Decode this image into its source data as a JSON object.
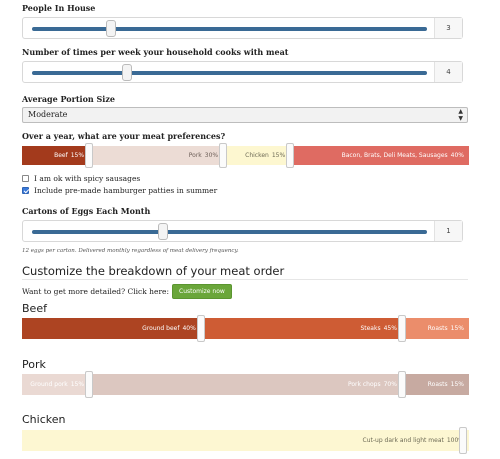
{
  "people": {
    "label": "People In House",
    "value": "3",
    "level": 0.2
  },
  "cooks": {
    "label": "Number of times per week your household cooks with meat",
    "value": "4",
    "level": 0.24
  },
  "portion": {
    "label": "Average Portion Size",
    "selected": "Moderate"
  },
  "prefs": {
    "label": "Over a year, what are your meat preferences?",
    "segments": [
      {
        "name": "Beef",
        "pct": "15%",
        "fraction": 0.15,
        "bg": "#a33a1c",
        "fg": "#ffffff"
      },
      {
        "name": "Pork",
        "pct": "30%",
        "fraction": 0.3,
        "bg": "#ecdcd5",
        "fg": "#6d5f58"
      },
      {
        "name": "Chicken",
        "pct": "15%",
        "fraction": 0.15,
        "bg": "#fdf7d0",
        "fg": "#6d6a55"
      },
      {
        "name": "Bacon, Brats, Deli Meats, Sausages",
        "pct": "40%",
        "fraction": 0.4,
        "bg": "#df6b62",
        "fg": "#ffffff"
      }
    ]
  },
  "options": [
    {
      "label": "I am ok with spicy sausages",
      "checked": false
    },
    {
      "label": "Include pre-made hamburger patties in summer",
      "checked": true
    }
  ],
  "eggs": {
    "label": "Cartons of Eggs Each Month",
    "value": "1",
    "level": 0.33,
    "note": "12 eggs per carton. Delivered monthly regardless of meat delivery frequency."
  },
  "customize": {
    "heading": "Customize the breakdown of your meat order",
    "prompt": "Want to get more detailed? Click here:",
    "button": "Customize now"
  },
  "beef": {
    "heading": "Beef",
    "segments": [
      {
        "name": "Ground beef",
        "pct": "40%",
        "fraction": 0.4,
        "bg": "#ad4422",
        "fg": "#ffffff"
      },
      {
        "name": "Steaks",
        "pct": "45%",
        "fraction": 0.45,
        "bg": "#ce5c34",
        "fg": "#ffffff"
      },
      {
        "name": "Roasts",
        "pct": "15%",
        "fraction": 0.15,
        "bg": "#eb8d6b",
        "fg": "#ffffff"
      }
    ]
  },
  "pork": {
    "heading": "Pork",
    "segments": [
      {
        "name": "Ground pork",
        "pct": "15%",
        "fraction": 0.15,
        "bg": "#ead9d3",
        "fg": "#ffffff"
      },
      {
        "name": "Pork chops",
        "pct": "70%",
        "fraction": 0.7,
        "bg": "#dcc7c0",
        "fg": "#ffffff"
      },
      {
        "name": "Roasts",
        "pct": "15%",
        "fraction": 0.15,
        "bg": "#c7aaa1",
        "fg": "#ffffff"
      }
    ]
  },
  "chicken": {
    "heading": "Chicken",
    "segments": [
      {
        "name": "Cut-up dark and light meat",
        "pct": "100%",
        "fraction": 1.0,
        "bg": "#fdf7d2",
        "fg": "#6d6a55"
      }
    ]
  }
}
